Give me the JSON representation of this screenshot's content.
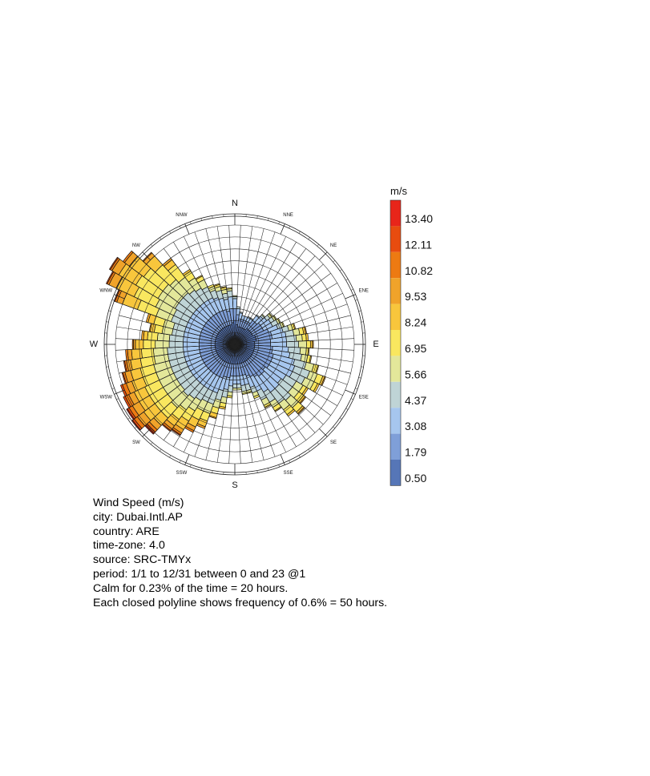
{
  "chart_data": {
    "type": "wind-rose",
    "directions": [
      "N",
      "NNE",
      "NE",
      "ENE",
      "E",
      "ESE",
      "SE",
      "SSE",
      "S",
      "SSW",
      "SW",
      "WSW",
      "W",
      "WNW",
      "NW",
      "NNW"
    ],
    "sectors_per_direction": 4,
    "frequency_ring_step_percent": 0.6,
    "ring_count": 10,
    "legend": {
      "unit": "m/s",
      "values": [
        "13.40",
        "12.11",
        "10.82",
        "9.53",
        "8.24",
        "6.95",
        "5.66",
        "4.37",
        "3.08",
        "1.79",
        "0.50"
      ],
      "colors": [
        "#e8251a",
        "#e84c0f",
        "#ed7a12",
        "#f0a32a",
        "#f8c63c",
        "#f9e75f",
        "#e3e79a",
        "#bfd4d6",
        "#a6c6ee",
        "#7f9fd8",
        "#5676b7"
      ]
    },
    "bin_colors": [
      "#5676b7",
      "#7f9fd8",
      "#a6c6ee",
      "#bfd4d6",
      "#e3e79a",
      "#f9e75f",
      "#f8c63c",
      "#f0a32a",
      "#ed7a12",
      "#e84c0f",
      "#e8251a"
    ],
    "sectors": [
      [
        1.2,
        0.6,
        0.5,
        0.1,
        0.05,
        0,
        0,
        0,
        0,
        0,
        0
      ],
      [
        1.0,
        0.5,
        0.3,
        0.1,
        0,
        0,
        0,
        0,
        0,
        0,
        0
      ],
      [
        0.9,
        0.4,
        0.3,
        0.05,
        0,
        0,
        0,
        0,
        0,
        0,
        0
      ],
      [
        0.9,
        0.4,
        0.2,
        0,
        0,
        0,
        0,
        0,
        0,
        0,
        0
      ],
      [
        0.9,
        0.4,
        0.2,
        0,
        0,
        0,
        0,
        0,
        0,
        0,
        0
      ],
      [
        0.9,
        0.4,
        0.2,
        0.05,
        0,
        0,
        0,
        0,
        0,
        0,
        0
      ],
      [
        0.9,
        0.4,
        0.2,
        0.05,
        0,
        0,
        0,
        0,
        0,
        0,
        0
      ],
      [
        1.0,
        0.5,
        0.3,
        0.05,
        0,
        0,
        0,
        0,
        0,
        0,
        0
      ],
      [
        1.0,
        0.5,
        0.4,
        0.1,
        0.05,
        0,
        0,
        0,
        0,
        0,
        0
      ],
      [
        1.0,
        0.6,
        0.4,
        0.2,
        0.1,
        0.05,
        0,
        0,
        0,
        0,
        0
      ],
      [
        1.0,
        0.6,
        0.5,
        0.2,
        0.1,
        0.05,
        0,
        0,
        0,
        0,
        0
      ],
      [
        1.0,
        0.6,
        0.5,
        0.3,
        0.1,
        0.05,
        0,
        0,
        0,
        0,
        0
      ],
      [
        1.1,
        0.7,
        0.5,
        0.2,
        0.1,
        0.05,
        0,
        0,
        0,
        0,
        0
      ],
      [
        1.1,
        0.8,
        0.6,
        0.3,
        0.2,
        0.1,
        0.05,
        0,
        0,
        0,
        0
      ],
      [
        1.1,
        0.8,
        0.7,
        0.4,
        0.3,
        0.2,
        0.1,
        0.05,
        0,
        0,
        0
      ],
      [
        1.0,
        0.8,
        0.8,
        0.5,
        0.3,
        0.2,
        0.1,
        0,
        0,
        0,
        0
      ],
      [
        1.0,
        0.8,
        0.8,
        0.6,
        0.4,
        0.2,
        0.1,
        0.05,
        0,
        0,
        0
      ],
      [
        1.0,
        0.9,
        0.8,
        0.6,
        0.3,
        0.1,
        0.05,
        0,
        0,
        0,
        0
      ],
      [
        1.0,
        0.9,
        0.9,
        0.6,
        0.3,
        0.15,
        0.05,
        0,
        0,
        0,
        0
      ],
      [
        1.0,
        1.0,
        1.1,
        0.6,
        0.4,
        0.2,
        0.05,
        0,
        0,
        0,
        0
      ],
      [
        1.0,
        1.0,
        1.2,
        0.8,
        0.4,
        0.3,
        0.1,
        0.05,
        0,
        0,
        0
      ],
      [
        1.0,
        1.0,
        1.2,
        0.7,
        0.5,
        0.2,
        0.1,
        0,
        0,
        0,
        0
      ],
      [
        1.0,
        1.0,
        1.0,
        0.6,
        0.4,
        0.2,
        0.1,
        0,
        0,
        0,
        0
      ],
      [
        1.0,
        0.9,
        1.0,
        0.7,
        0.4,
        0.3,
        0.1,
        0.05,
        0,
        0,
        0
      ],
      [
        1.0,
        1.0,
        1.0,
        0.8,
        0.5,
        0.3,
        0.1,
        0.05,
        0,
        0,
        0
      ],
      [
        1.0,
        1.0,
        1.0,
        0.7,
        0.4,
        0.3,
        0.1,
        0,
        0,
        0,
        0
      ],
      [
        1.0,
        0.9,
        0.9,
        0.6,
        0.3,
        0.2,
        0.05,
        0,
        0,
        0,
        0
      ],
      [
        1.0,
        0.8,
        0.8,
        0.5,
        0.3,
        0.1,
        0.05,
        0,
        0,
        0,
        0
      ],
      [
        1.0,
        0.7,
        0.6,
        0.3,
        0.2,
        0.1,
        0,
        0,
        0,
        0,
        0
      ],
      [
        1.0,
        0.6,
        0.5,
        0.3,
        0.1,
        0.05,
        0,
        0,
        0,
        0,
        0
      ],
      [
        1.0,
        0.6,
        0.5,
        0.3,
        0.1,
        0.05,
        0,
        0,
        0,
        0,
        0
      ],
      [
        1.0,
        0.6,
        0.4,
        0.2,
        0.1,
        0,
        0,
        0,
        0,
        0,
        0
      ],
      [
        1.0,
        0.6,
        0.4,
        0.2,
        0.1,
        0,
        0,
        0,
        0,
        0,
        0
      ],
      [
        1.0,
        0.6,
        0.5,
        0.3,
        0.2,
        0.1,
        0,
        0,
        0,
        0,
        0
      ],
      [
        1.0,
        0.7,
        0.6,
        0.4,
        0.3,
        0.2,
        0.1,
        0,
        0,
        0,
        0
      ],
      [
        1.0,
        0.7,
        0.7,
        0.5,
        0.4,
        0.3,
        0.2,
        0.05,
        0,
        0,
        0
      ],
      [
        1.0,
        0.8,
        0.8,
        0.6,
        0.5,
        0.4,
        0.3,
        0.1,
        0,
        0,
        0
      ],
      [
        1.0,
        0.8,
        0.8,
        0.6,
        0.5,
        0.5,
        0.4,
        0.2,
        0.1,
        0,
        0
      ],
      [
        1.0,
        0.8,
        0.8,
        0.7,
        0.6,
        0.6,
        0.5,
        0.2,
        0.1,
        0.05,
        0
      ],
      [
        1.0,
        0.8,
        0.8,
        0.8,
        0.7,
        0.6,
        0.4,
        0.2,
        0.1,
        0.05,
        0
      ],
      [
        1.0,
        0.8,
        0.8,
        0.9,
        0.8,
        0.7,
        0.5,
        0.3,
        0.15,
        0.1,
        0.05
      ],
      [
        1.0,
        0.8,
        0.8,
        0.8,
        0.8,
        0.8,
        0.7,
        0.4,
        0.2,
        0.1,
        0.05
      ],
      [
        1.0,
        0.8,
        0.8,
        0.8,
        0.8,
        0.8,
        0.6,
        0.4,
        0.2,
        0.1,
        0.05
      ],
      [
        1.0,
        0.8,
        0.8,
        0.8,
        0.8,
        0.8,
        0.6,
        0.3,
        0.2,
        0.1,
        0
      ],
      [
        1.0,
        0.8,
        0.8,
        0.8,
        0.8,
        0.7,
        0.6,
        0.3,
        0.2,
        0.1,
        0
      ],
      [
        1.0,
        0.8,
        0.8,
        0.8,
        0.8,
        0.7,
        0.5,
        0.3,
        0.1,
        0.05,
        0
      ],
      [
        1.0,
        0.8,
        0.8,
        0.8,
        0.7,
        0.7,
        0.5,
        0.2,
        0.1,
        0.05,
        0
      ],
      [
        1.0,
        0.8,
        0.8,
        0.8,
        0.7,
        0.6,
        0.5,
        0.2,
        0.1,
        0,
        0
      ],
      [
        1.0,
        0.8,
        0.8,
        0.7,
        0.7,
        0.6,
        0.4,
        0.1,
        0.05,
        0,
        0
      ],
      [
        1.0,
        0.8,
        0.8,
        0.7,
        0.6,
        0.5,
        0.2,
        0.1,
        0,
        0,
        0
      ],
      [
        1.0,
        0.8,
        0.8,
        0.6,
        0.5,
        0.4,
        0.2,
        0.05,
        0,
        0,
        0
      ],
      [
        1.0,
        0.8,
        0.8,
        0.6,
        0.5,
        0.5,
        0.3,
        0.1,
        0,
        0,
        0
      ],
      [
        1.0,
        0.8,
        0.8,
        0.8,
        0.8,
        1.0,
        0.8,
        0.3,
        0.1,
        0.05,
        0
      ],
      [
        1.0,
        0.8,
        0.8,
        0.8,
        1.0,
        1.2,
        1.0,
        0.4,
        0.1,
        0.05,
        0
      ],
      [
        1.0,
        0.8,
        0.8,
        0.9,
        1.0,
        1.3,
        1.0,
        0.4,
        0.1,
        0.05,
        0
      ],
      [
        1.0,
        0.8,
        0.8,
        0.9,
        1.0,
        1.2,
        0.9,
        0.3,
        0.1,
        0,
        0
      ],
      [
        1.0,
        0.8,
        0.8,
        0.9,
        0.9,
        1.0,
        0.6,
        0.2,
        0.05,
        0,
        0
      ],
      [
        1.0,
        0.8,
        0.8,
        0.8,
        0.8,
        0.8,
        0.3,
        0.1,
        0,
        0,
        0
      ],
      [
        1.0,
        0.8,
        0.8,
        0.7,
        0.6,
        0.4,
        0.1,
        0,
        0,
        0,
        0
      ],
      [
        1.0,
        0.8,
        0.8,
        0.6,
        0.4,
        0.2,
        0.05,
        0,
        0,
        0,
        0
      ],
      [
        1.0,
        0.8,
        0.7,
        0.4,
        0.2,
        0.1,
        0,
        0,
        0,
        0,
        0
      ],
      [
        1.0,
        0.8,
        0.6,
        0.4,
        0.2,
        0.1,
        0.05,
        0,
        0,
        0,
        0
      ],
      [
        1.0,
        0.7,
        0.6,
        0.3,
        0.2,
        0.1,
        0.05,
        0,
        0,
        0,
        0
      ],
      [
        1.1,
        0.7,
        0.6,
        0.3,
        0.1,
        0.05,
        0,
        0,
        0,
        0,
        0
      ]
    ]
  },
  "info_lines": [
    "Wind Speed (m/s)",
    "city: Dubai.Intl.AP",
    "country: ARE",
    "time-zone: 4.0",
    "source: SRC-TMYx",
    "period: 1/1 to 12/31 between 0 and 23 @1",
    "Calm for 0.23% of the time = 20 hours.",
    "Each closed polyline shows frequency of 0.6% = 50 hours."
  ]
}
